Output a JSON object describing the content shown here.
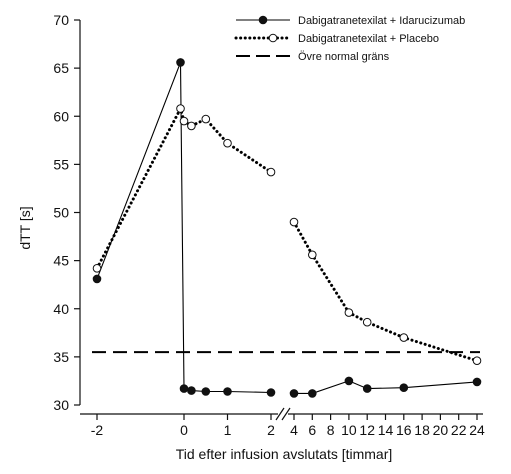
{
  "chart_data": {
    "type": "line",
    "title": "",
    "xlabel": "Tid efter infusion avslutats [timmar]",
    "ylabel": "dTT [s]",
    "ylim": [
      30,
      70
    ],
    "y_ticks": [
      30,
      35,
      40,
      45,
      50,
      55,
      60,
      65,
      70
    ],
    "x_axis_break_between": [
      2,
      4
    ],
    "x_tick_labels": [
      "-2",
      "0",
      "1",
      "2",
      "4",
      "6",
      "8",
      "10",
      "12",
      "14",
      "16",
      "18",
      "20",
      "22",
      "24"
    ],
    "x_ticks": [
      -2,
      0,
      1,
      2,
      4,
      6,
      8,
      10,
      12,
      14,
      16,
      18,
      20,
      22,
      24
    ],
    "grid": false,
    "legend_position": "top-right",
    "series": [
      {
        "name": "Dabigatranetexilat + Idarucizumab",
        "marker": "filled-circle",
        "line_style": "solid",
        "color": "#000000",
        "segments": [
          [
            {
              "x": -2,
              "y": 43.1
            },
            {
              "x": -0.08,
              "y": 65.6
            },
            {
              "x": 0,
              "y": 31.7
            },
            {
              "x": 0.17,
              "y": 31.5
            },
            {
              "x": 0.5,
              "y": 31.4
            },
            {
              "x": 1,
              "y": 31.4
            },
            {
              "x": 2,
              "y": 31.3
            }
          ],
          [
            {
              "x": 4,
              "y": 31.2
            },
            {
              "x": 6,
              "y": 31.2
            },
            {
              "x": 10,
              "y": 32.5
            },
            {
              "x": 12,
              "y": 31.7
            },
            {
              "x": 16,
              "y": 31.8
            },
            {
              "x": 24,
              "y": 32.4
            }
          ]
        ]
      },
      {
        "name": "Dabigatranetexilat + Placebo",
        "marker": "open-circle",
        "line_style": "dotted",
        "color": "#000000",
        "segments": [
          [
            {
              "x": -2,
              "y": 44.2
            },
            {
              "x": -0.08,
              "y": 60.8
            },
            {
              "x": 0,
              "y": 59.5
            },
            {
              "x": 0.17,
              "y": 59.0
            },
            {
              "x": 0.5,
              "y": 59.7
            },
            {
              "x": 1,
              "y": 57.2
            },
            {
              "x": 2,
              "y": 54.2
            }
          ],
          [
            {
              "x": 4,
              "y": 49.0
            },
            {
              "x": 6,
              "y": 45.6
            },
            {
              "x": 10,
              "y": 39.6
            },
            {
              "x": 12,
              "y": 38.6
            },
            {
              "x": 16,
              "y": 37.0
            },
            {
              "x": 24,
              "y": 34.6
            }
          ]
        ]
      },
      {
        "name": "Övre normal gräns",
        "line_style": "dashed",
        "color": "#000000",
        "reference_y": 35.5
      }
    ]
  }
}
